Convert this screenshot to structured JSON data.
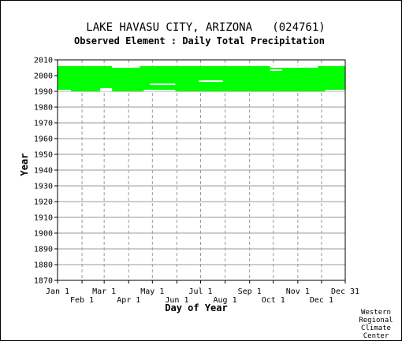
{
  "chart_data": {
    "type": "heatmap",
    "title": "LAKE HAVASU CITY, ARIZONA   (024761)",
    "subtitle": "Observed Element : Daily Total Precipitation",
    "xlabel": "Day of Year",
    "ylabel": "Year",
    "credit": [
      "Western",
      "Regional",
      "Climate",
      "Center"
    ],
    "x_ticks_top": [
      "Jan 1",
      "Mar 1",
      "May 1",
      "Jul 1",
      "Sep 1",
      "Nov 1",
      "Dec 31"
    ],
    "x_ticks_top_day": [
      1,
      60,
      121,
      182,
      244,
      305,
      365
    ],
    "x_ticks_bottom": [
      "Feb 1",
      "Apr 1",
      "Jun 1",
      "Aug 1",
      "Oct 1",
      "Dec 1"
    ],
    "x_ticks_bottom_day": [
      32,
      91,
      152,
      213,
      274,
      335
    ],
    "y_ticks": [
      1870,
      1880,
      1890,
      1900,
      1910,
      1920,
      1930,
      1940,
      1950,
      1960,
      1970,
      1980,
      1990,
      2000,
      2010
    ],
    "ylim": [
      1870,
      2010
    ],
    "xlim": [
      1,
      365
    ],
    "grid": true,
    "data_color": "#00ff00",
    "observed_period": {
      "start_year": 1990,
      "end_year": 2005
    },
    "missing_segments": [
      {
        "year": 1990,
        "start_day": 1,
        "end_day": 18
      },
      {
        "year": 1990,
        "start_day": 55,
        "end_day": 70
      },
      {
        "year": 1990,
        "start_day": 110,
        "end_day": 150
      },
      {
        "year": 1990,
        "start_day": 340,
        "end_day": 365
      },
      {
        "year": 1991,
        "start_day": 55,
        "end_day": 70
      },
      {
        "year": 1994,
        "start_day": 118,
        "end_day": 150
      },
      {
        "year": 1996,
        "start_day": 180,
        "end_day": 210
      },
      {
        "year": 2003,
        "start_day": 270,
        "end_day": 285
      },
      {
        "year": 2005,
        "start_day": 70,
        "end_day": 105
      },
      {
        "year": 2005,
        "start_day": 270,
        "end_day": 330
      }
    ]
  }
}
